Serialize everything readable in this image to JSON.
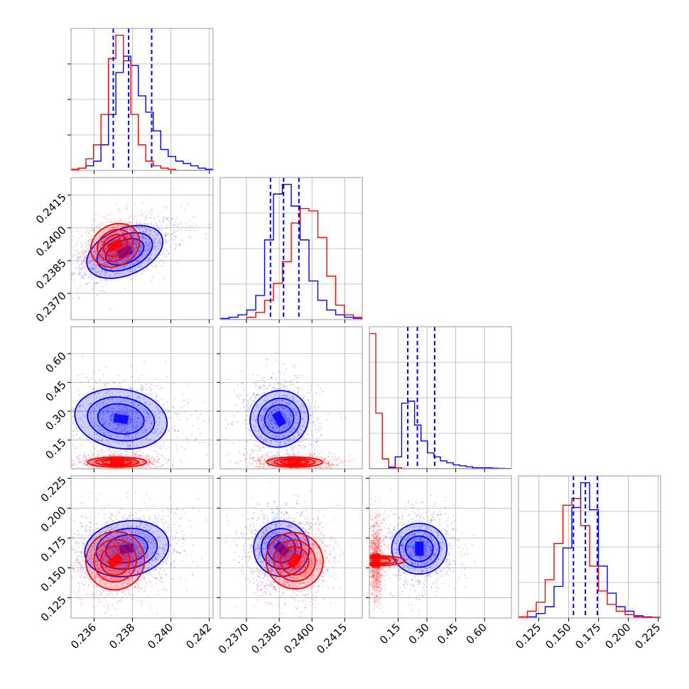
{
  "chart_data": {
    "type": "corner",
    "title": "",
    "colors": {
      "series_a": "#0000ff",
      "series_b": "#ff0000",
      "grid": "#b0b0b0",
      "frame": "#999999"
    },
    "series": [
      {
        "color": "#0000ff",
        "p0_hist": [
          0,
          1,
          2,
          4,
          11,
          24,
          42,
          49,
          45,
          32,
          25,
          17,
          9,
          6,
          4,
          3,
          2,
          1,
          0.5
        ],
        "p1_hist": [
          0.5,
          1,
          2,
          4,
          10,
          33,
          52,
          56,
          47,
          33,
          16,
          8,
          4,
          2,
          1,
          0.5
        ],
        "p2_hist": [
          0,
          0,
          0,
          0.5,
          6,
          33,
          34,
          22,
          14,
          8,
          6,
          4,
          3,
          2,
          1.5,
          1,
          0.5,
          0.5,
          0.5,
          0.3,
          0.2,
          0.1
        ],
        "p3_hist": [
          0,
          0.5,
          2,
          5,
          14,
          31,
          49,
          60,
          48,
          23,
          11,
          5,
          3,
          1,
          0.5,
          0.3
        ],
        "quantiles": [
          [
            0.237,
            0.2378,
            0.239
          ],
          [
            0.2381,
            0.2387,
            0.2394
          ],
          [
            0.2,
            0.25,
            0.34
          ],
          [
            0.154,
            0.164,
            0.174
          ]
        ]
      },
      {
        "color": "#ff0000",
        "p0_hist": [
          0.5,
          1,
          5,
          11,
          24,
          48,
          58,
          47,
          24,
          11,
          4,
          2,
          1,
          0.5,
          0,
          0,
          0,
          0,
          0
        ],
        "p1_hist": [
          0,
          0,
          0,
          1,
          3,
          8,
          15,
          24,
          40,
          46,
          45,
          34,
          18,
          6,
          2,
          1
        ],
        "p2_hist": [
          68,
          28,
          5,
          1,
          0.5,
          0,
          0,
          0,
          0,
          0,
          0,
          0,
          0,
          0,
          0,
          0,
          0,
          0,
          0,
          0,
          0,
          0
        ],
        "p3_hist": [
          0.5,
          3,
          7,
          17,
          33,
          50,
          53,
          41,
          23,
          12,
          6,
          3,
          1.5,
          0.5,
          0.3,
          0.2
        ]
      }
    ],
    "diagonal_limits": [
      [
        0.2348,
        0.2422
      ],
      [
        0.2358,
        0.2423
      ],
      [
        0.0,
        0.74
      ],
      [
        0.108,
        0.227
      ]
    ],
    "pairs": [
      {
        "row": 1,
        "col": 0,
        "centers": [
          {
            "series": 0,
            "cx": 0.2376,
            "cy": 0.2389,
            "sx": 0.00095,
            "sy": 0.00048,
            "rho": 0.6
          },
          {
            "series": 1,
            "cx": 0.2371,
            "cy": 0.2392,
            "sx": 0.0006,
            "sy": 0.00043,
            "rho": 0.3
          }
        ]
      },
      {
        "row": 2,
        "col": 0,
        "centers": [
          {
            "series": 0,
            "cx": 0.2374,
            "cy": 0.26,
            "sx": 0.0011,
            "sy": 0.07,
            "rho": -0.15
          },
          {
            "series": 1,
            "cx": 0.2372,
            "cy": 0.035,
            "sx": 0.0007,
            "sy": 0.012,
            "rho": 0
          }
        ]
      },
      {
        "row": 2,
        "col": 1,
        "centers": [
          {
            "series": 0,
            "cx": 0.2385,
            "cy": 0.26,
            "sx": 0.00058,
            "sy": 0.07,
            "rho": -0.1
          },
          {
            "series": 1,
            "cx": 0.2392,
            "cy": 0.035,
            "sx": 0.00058,
            "sy": 0.012,
            "rho": 0
          }
        ]
      },
      {
        "row": 3,
        "col": 0,
        "centers": [
          {
            "series": 0,
            "cx": 0.2377,
            "cy": 0.166,
            "sx": 0.001,
            "sy": 0.0105,
            "rho": 0.15
          },
          {
            "series": 1,
            "cx": 0.2371,
            "cy": 0.156,
            "sx": 0.0007,
            "sy": 0.011,
            "rho": 0.1
          }
        ]
      },
      {
        "row": 3,
        "col": 1,
        "centers": [
          {
            "series": 0,
            "cx": 0.2386,
            "cy": 0.166,
            "sx": 0.00058,
            "sy": 0.0105,
            "rho": -0.1
          },
          {
            "series": 1,
            "cx": 0.2392,
            "cy": 0.156,
            "sx": 0.00058,
            "sy": 0.011,
            "rho": 0.1
          }
        ]
      },
      {
        "row": 3,
        "col": 2,
        "centers": [
          {
            "series": 0,
            "cx": 0.26,
            "cy": 0.166,
            "sx": 0.06,
            "sy": 0.0105,
            "rho": 0
          },
          {
            "series": 1,
            "cx": 0.035,
            "cy": 0.156,
            "sx": 0.012,
            "sy": 0.011,
            "rho": 0
          }
        ]
      }
    ],
    "x_ticks": [
      [
        "0.236",
        "0.238",
        "0.240",
        "0.242"
      ],
      [
        "0.2370",
        "0.2385",
        "0.2400",
        "0.2415"
      ],
      [
        "0.15",
        "0.30",
        "0.45",
        "0.60"
      ],
      [
        "0.125",
        "0.150",
        "0.175",
        "0.200",
        "0.225"
      ]
    ],
    "y_ticks": [
      [],
      [
        "0.2370",
        "0.2385",
        "0.2400",
        "0.2415"
      ],
      [
        "0.15",
        "0.30",
        "0.45",
        "0.60"
      ],
      [
        "0.125",
        "0.150",
        "0.175",
        "0.200",
        "0.225"
      ]
    ],
    "grid": true
  }
}
